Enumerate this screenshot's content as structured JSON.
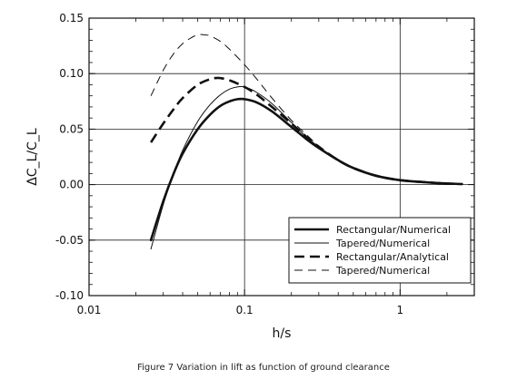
{
  "chart_data": {
    "type": "line",
    "xscale": "log",
    "xlim": [
      0.01,
      3
    ],
    "ylim": [
      -0.1,
      0.15
    ],
    "xticks": [
      0.01,
      0.1,
      1
    ],
    "xtick_labels": [
      "0.01",
      "0.1",
      "1"
    ],
    "yticks": [
      -0.1,
      -0.05,
      0.0,
      0.05,
      0.1,
      0.15
    ],
    "ytick_labels": [
      "-0.10",
      "-0.05",
      "0.00",
      "0.05",
      "0.10",
      "0.15"
    ],
    "xlabel": "h/s",
    "ylabel": "ΔC_L/C_L",
    "grid": true,
    "legend_position": "lower-right",
    "series": [
      {
        "name": "Rectangular/Numerical",
        "style": "solid-thick",
        "x": [
          0.025,
          0.03,
          0.035,
          0.04,
          0.05,
          0.06,
          0.07,
          0.08,
          0.09,
          0.1,
          0.12,
          0.15,
          0.2,
          0.25,
          0.3,
          0.4,
          0.5,
          0.7,
          1.0,
          1.5,
          2.0,
          2.5
        ],
        "y": [
          -0.05,
          -0.015,
          0.01,
          0.028,
          0.05,
          0.063,
          0.071,
          0.075,
          0.077,
          0.077,
          0.074,
          0.066,
          0.052,
          0.041,
          0.033,
          0.022,
          0.015,
          0.008,
          0.004,
          0.002,
          0.001,
          0.0005
        ]
      },
      {
        "name": "Tapered/Numerical",
        "style": "solid-thin",
        "x": [
          0.025,
          0.03,
          0.035,
          0.04,
          0.05,
          0.06,
          0.07,
          0.08,
          0.09,
          0.1,
          0.12,
          0.15,
          0.2,
          0.25,
          0.3,
          0.4,
          0.5,
          0.7,
          1.0,
          1.5,
          2.0,
          2.5
        ],
        "y": [
          -0.058,
          -0.018,
          0.01,
          0.031,
          0.057,
          0.072,
          0.081,
          0.086,
          0.088,
          0.088,
          0.083,
          0.073,
          0.056,
          0.043,
          0.034,
          0.022,
          0.015,
          0.008,
          0.004,
          0.002,
          0.001,
          0.0005
        ]
      },
      {
        "name": "Rectangular/Analytical",
        "style": "dashed-thick",
        "x": [
          0.025,
          0.03,
          0.035,
          0.04,
          0.05,
          0.06,
          0.065,
          0.07,
          0.08,
          0.1,
          0.12,
          0.15,
          0.2,
          0.25,
          0.3,
          0.4,
          0.5,
          0.7,
          1.0,
          1.5,
          2.0,
          2.5
        ],
        "y": [
          0.038,
          0.055,
          0.068,
          0.078,
          0.09,
          0.095,
          0.096,
          0.096,
          0.094,
          0.088,
          0.081,
          0.07,
          0.055,
          0.043,
          0.034,
          0.022,
          0.015,
          0.008,
          0.004,
          0.002,
          0.001,
          0.0005
        ]
      },
      {
        "name": "Tapered/Numerical",
        "style": "dashed-thin",
        "x": [
          0.025,
          0.03,
          0.035,
          0.04,
          0.045,
          0.05,
          0.055,
          0.06,
          0.07,
          0.08,
          0.1,
          0.12,
          0.15,
          0.2,
          0.25,
          0.3,
          0.4,
          0.5,
          0.7,
          1.0,
          1.5,
          2.0,
          2.5
        ],
        "y": [
          0.08,
          0.103,
          0.118,
          0.127,
          0.132,
          0.135,
          0.135,
          0.134,
          0.129,
          0.122,
          0.108,
          0.095,
          0.078,
          0.058,
          0.045,
          0.035,
          0.022,
          0.015,
          0.008,
          0.004,
          0.002,
          0.001,
          0.0005
        ]
      }
    ]
  },
  "caption": "Figure 7 Variation in lift as function of ground clearance"
}
